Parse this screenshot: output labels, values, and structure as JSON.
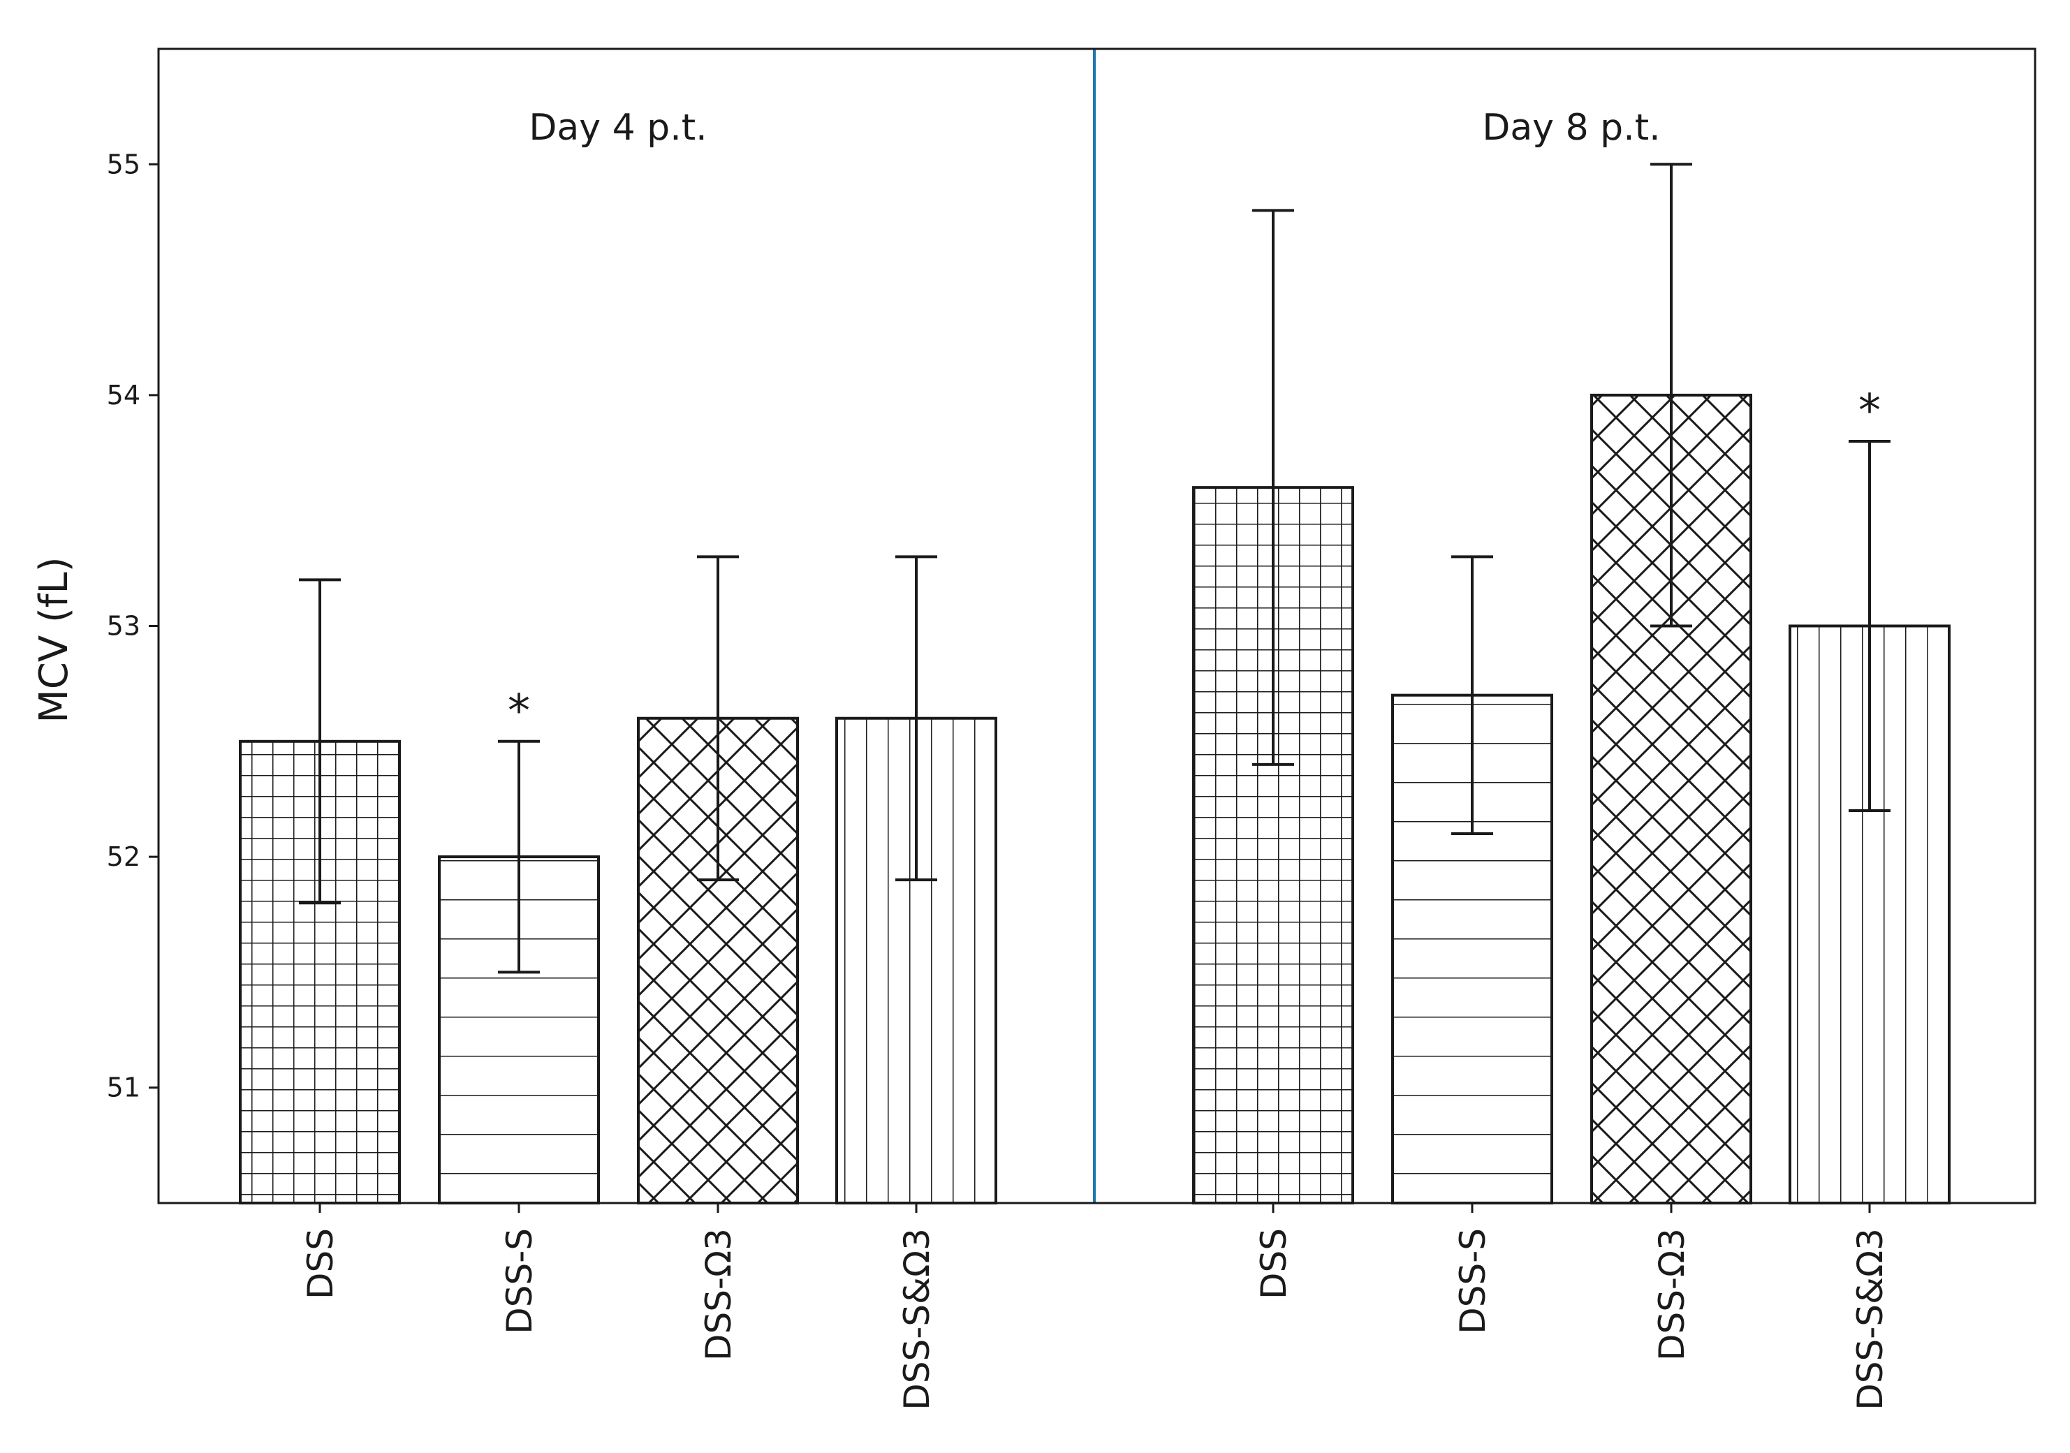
{
  "chart_data": {
    "type": "bar",
    "ylabel": "MCV  (fL)",
    "ylim": [
      50.5,
      55.5
    ],
    "yticks": [
      51,
      52,
      53,
      54,
      55
    ],
    "grid": false,
    "legend": "none",
    "groups": [
      {
        "label": "Day 4 p.t.",
        "bars": [
          {
            "category": "DSS",
            "value": 52.5,
            "err_low": 51.8,
            "err_high": 53.2,
            "pattern": "grid",
            "annotation": ""
          },
          {
            "category": "DSS-S",
            "value": 52.0,
            "err_low": 51.5,
            "err_high": 52.5,
            "pattern": "horizontal",
            "annotation": "*"
          },
          {
            "category": "DSS-Ω3",
            "value": 52.6,
            "err_low": 51.9,
            "err_high": 53.3,
            "pattern": "crosshatch",
            "annotation": ""
          },
          {
            "category": "DSS-S&Ω3",
            "value": 52.6,
            "err_low": 51.9,
            "err_high": 53.3,
            "pattern": "vertical",
            "annotation": ""
          }
        ]
      },
      {
        "label": "Day 8 p.t.",
        "bars": [
          {
            "category": "DSS",
            "value": 53.6,
            "err_low": 52.4,
            "err_high": 54.8,
            "pattern": "grid",
            "annotation": ""
          },
          {
            "category": "DSS-S",
            "value": 52.7,
            "err_low": 52.1,
            "err_high": 53.3,
            "pattern": "horizontal",
            "annotation": ""
          },
          {
            "category": "DSS-Ω3",
            "value": 54.0,
            "err_low": 53.0,
            "err_high": 55.0,
            "pattern": "crosshatch",
            "annotation": ""
          },
          {
            "category": "DSS-S&Ω3",
            "value": 53.0,
            "err_low": 52.2,
            "err_high": 53.8,
            "pattern": "vertical",
            "annotation": "*"
          }
        ]
      }
    ],
    "colors": {
      "bar_stroke": "#1a1a1a",
      "bar_fill": "#ffffff",
      "separator": "#1f77b4",
      "axis": "#1a1a1a"
    }
  }
}
